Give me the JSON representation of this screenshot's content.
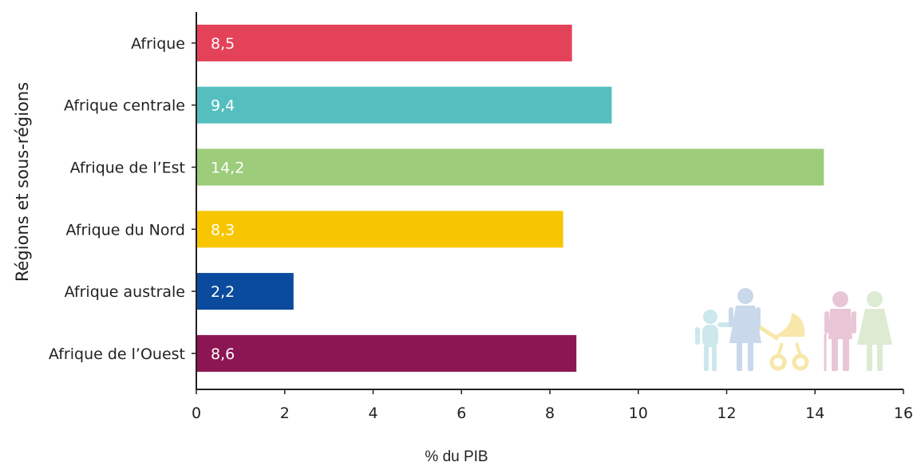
{
  "chart_data": {
    "type": "bar",
    "orientation": "horizontal",
    "categories": [
      "Afrique",
      "Afrique centrale",
      "Afrique de l’Est",
      "Afrique du Nord",
      "Afrique australe",
      "Afrique de l’Ouest"
    ],
    "values": [
      8.5,
      9.4,
      14.2,
      8.3,
      2.2,
      8.6
    ],
    "value_labels": [
      "8,5",
      "9,4",
      "14,2",
      "8,3",
      "2,2",
      "8,6"
    ],
    "bar_colors": [
      "#e44258",
      "#55bfbf",
      "#9dcc7a",
      "#f7c600",
      "#0b4b9e",
      "#8b1653"
    ],
    "xlim": [
      0,
      16
    ],
    "x_ticks": [
      "0",
      "2",
      "4",
      "6",
      "8",
      "10",
      "12",
      "14",
      "16"
    ],
    "xlabel": "% du PIB",
    "ylabel": "Régions et sous-régions",
    "grid": false,
    "legend": "none"
  },
  "decoration": {
    "icon": "family-silhouette-icon",
    "colors": [
      "#cde8ec",
      "#c9d8ea",
      "#f7e7a8",
      "#e8c6d6",
      "#dcebd2"
    ]
  }
}
